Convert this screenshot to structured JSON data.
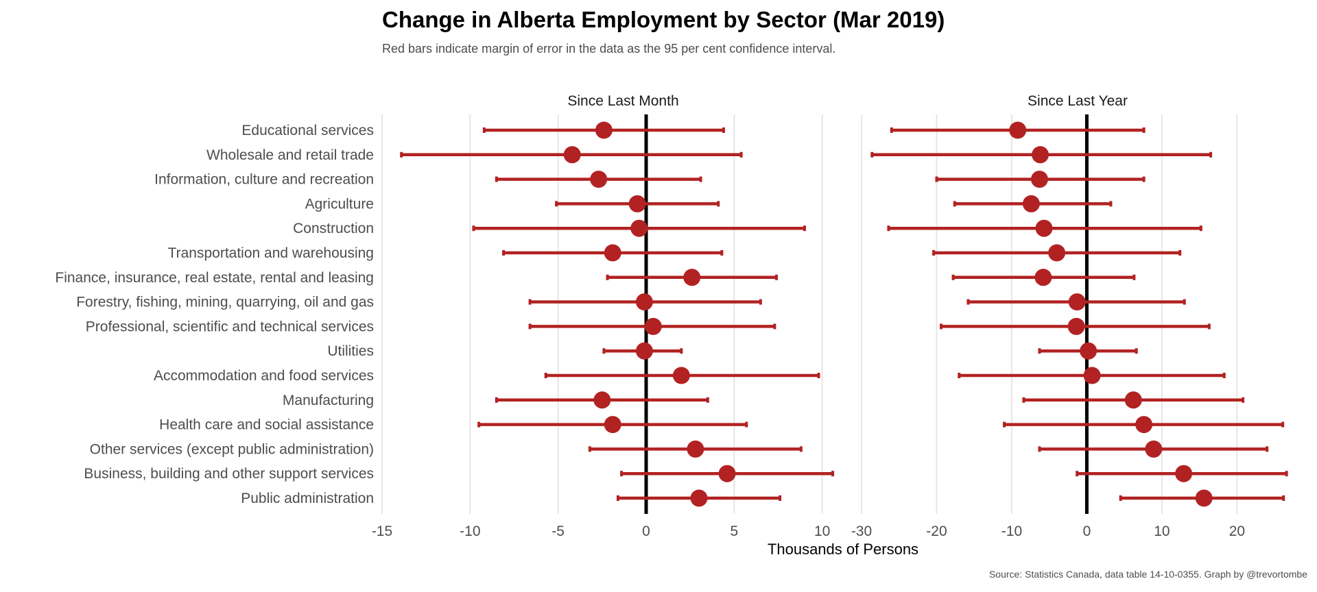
{
  "chart_data": {
    "type": "dot-errorbar",
    "title": "Change in Alberta Employment by Sector (Mar 2019)",
    "subtitle": "Red bars indicate margin of error in the data as the 95 per cent confidence interval.",
    "xlabel": "Thousands of Persons",
    "caption": "Source: Statistics Canada, data table 14-10-0355. Graph by @trevortombe",
    "colors": {
      "point": "#b22222",
      "errorbar": "#b22222",
      "zero_line": "#000000",
      "grid": "#e6e6e6"
    },
    "categories": [
      "Educational services",
      "Wholesale and retail trade",
      "Information, culture and recreation",
      "Agriculture",
      "Construction",
      "Transportation and warehousing",
      "Finance, insurance, real estate, rental and leasing",
      "Forestry, fishing, mining, quarrying, oil and gas",
      "Professional, scientific and technical services",
      "Utilities",
      "Accommodation and food services",
      "Manufacturing",
      "Health care and social assistance",
      "Other services (except public administration)",
      "Business, building and other support services",
      "Public administration"
    ],
    "panels": [
      {
        "name": "Since Last Month",
        "xlim": [
          -15,
          12
        ],
        "ticks": [
          -15,
          -10,
          -5,
          0,
          5,
          10
        ],
        "values": [
          -2.4,
          -4.2,
          -2.7,
          -0.5,
          -0.4,
          -1.9,
          2.6,
          -0.1,
          0.4,
          -0.1,
          2.0,
          -2.5,
          -1.9,
          2.8,
          4.6,
          3.0
        ],
        "lower": [
          -9.2,
          -13.9,
          -8.5,
          -5.1,
          -9.8,
          -8.1,
          -2.2,
          -6.6,
          -6.6,
          -2.4,
          -5.7,
          -8.5,
          -9.5,
          -3.2,
          -1.4,
          -1.6
        ],
        "upper": [
          4.4,
          5.4,
          3.1,
          4.1,
          9.0,
          4.3,
          7.4,
          6.5,
          7.3,
          2.0,
          9.8,
          3.5,
          5.7,
          8.8,
          10.6,
          7.6
        ]
      },
      {
        "name": "Since Last Year",
        "xlim": [
          -30,
          27
        ],
        "ticks": [
          -30,
          -20,
          -10,
          0,
          10,
          20
        ],
        "values": [
          -9.2,
          -6.2,
          -6.3,
          -7.4,
          -5.7,
          -4.0,
          -5.8,
          -1.3,
          -1.4,
          0.2,
          0.7,
          6.2,
          7.6,
          8.9,
          12.9,
          15.6
        ],
        "lower": [
          -26.0,
          -28.6,
          -20.0,
          -17.6,
          -26.4,
          -20.4,
          -17.8,
          -15.8,
          -19.4,
          -6.3,
          -17.0,
          -8.4,
          -11.0,
          -6.3,
          -1.3,
          4.5
        ],
        "upper": [
          7.6,
          16.5,
          7.6,
          3.2,
          15.2,
          12.4,
          6.3,
          13.0,
          16.3,
          6.6,
          18.3,
          20.8,
          26.1,
          24.0,
          26.6,
          26.2
        ]
      }
    ]
  }
}
